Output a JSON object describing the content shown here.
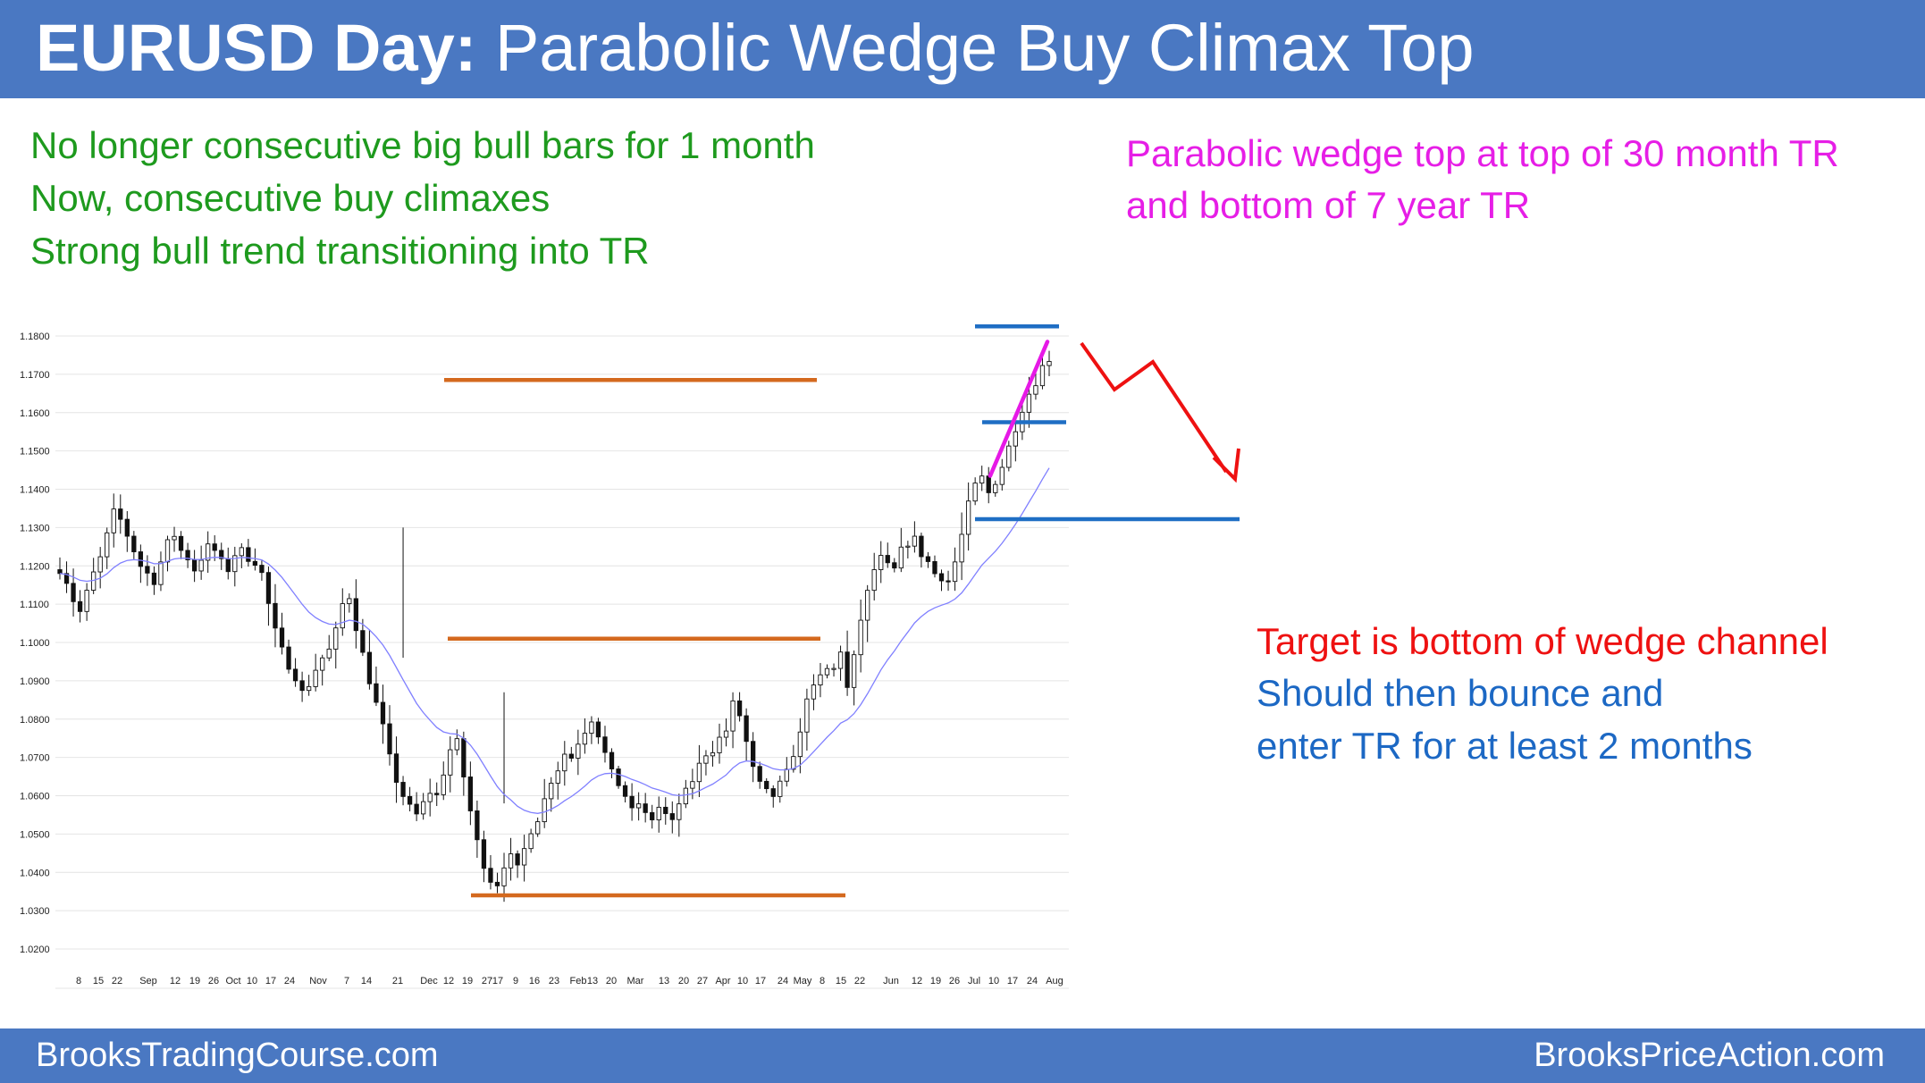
{
  "title": {
    "bold": "EURUSD Day:",
    "rest": " Parabolic Wedge Buy Climax Top"
  },
  "notes": {
    "green": [
      "No longer consecutive big bull bars for 1 month",
      "Now, consecutive buy climaxes",
      "Strong bull trend transitioning into TR"
    ],
    "magenta": [
      "Parabolic wedge top at top of 30 month TR",
      "and bottom of 7 year TR"
    ],
    "red": "Target is bottom of wedge channel",
    "blue": [
      "Should then bounce and",
      "enter TR for at least 2 months"
    ]
  },
  "footer": {
    "left": "BrooksTradingCourse.com",
    "right": "BrooksPriceAction.com"
  },
  "colors": {
    "header": "#4a78c2",
    "orange_line": "#d4691e",
    "blue_line": "#1f6ec4",
    "wedge": "#e619e6",
    "arrow": "#ee1111",
    "ema": "#8080ff",
    "candle": "#111111"
  },
  "chart_data": {
    "type": "candlestick",
    "ylim": [
      1.02,
      1.18
    ],
    "yticks": [
      "1.1800",
      "1.1700",
      "1.1600",
      "1.1500",
      "1.1400",
      "1.1300",
      "1.1200",
      "1.1100",
      "1.1000",
      "1.0900",
      "1.0800",
      "1.0700",
      "1.0600",
      "1.0500",
      "1.0400",
      "1.0300",
      "1.0200"
    ],
    "xticks": [
      "8",
      "15",
      "22",
      "Sep",
      "12",
      "19",
      "26",
      "Oct",
      "10",
      "17",
      "24",
      "Nov",
      "7",
      "14",
      "21",
      "Dec",
      "12",
      "19",
      "27",
      "'17",
      "9",
      "16",
      "23",
      "Feb",
      "13",
      "20",
      "Mar",
      "13",
      "20",
      "27",
      "Apr",
      "10",
      "17",
      "24",
      "May",
      "8",
      "15",
      "22",
      "Jun",
      "12",
      "19",
      "26",
      "Jul",
      "10",
      "17",
      "24",
      "Aug"
    ],
    "close_path": [
      1.119,
      1.116,
      1.111,
      1.108,
      1.113,
      1.118,
      1.122,
      1.128,
      1.134,
      1.132,
      1.128,
      1.124,
      1.12,
      1.118,
      1.116,
      1.121,
      1.126,
      1.128,
      1.124,
      1.122,
      1.119,
      1.122,
      1.125,
      1.124,
      1.121,
      1.119,
      1.123,
      1.124,
      1.122,
      1.121,
      1.118,
      1.11,
      1.103,
      1.098,
      1.094,
      1.091,
      1.087,
      1.089,
      1.093,
      1.096,
      1.098,
      1.103,
      1.11,
      1.112,
      1.104,
      1.097,
      1.09,
      1.084,
      1.078,
      1.07,
      1.064,
      1.06,
      1.057,
      1.055,
      1.058,
      1.061,
      1.06,
      1.066,
      1.072,
      1.074,
      1.065,
      1.056,
      1.048,
      1.042,
      1.038,
      1.037,
      1.042,
      1.044,
      1.041,
      1.046,
      1.051,
      1.054,
      1.059,
      1.064,
      1.067,
      1.071,
      1.07,
      1.074,
      1.077,
      1.08,
      1.076,
      1.071,
      1.066,
      1.063,
      1.06,
      1.056,
      1.058,
      1.055,
      1.054,
      1.057,
      1.055,
      1.053,
      1.058,
      1.061,
      1.064,
      1.068,
      1.071,
      1.072,
      1.075,
      1.077,
      1.084,
      1.081,
      1.074,
      1.067,
      1.063,
      1.061,
      1.06,
      1.063,
      1.066,
      1.071,
      1.076,
      1.086,
      1.088,
      1.091,
      1.093,
      1.093,
      1.098,
      1.088,
      1.096,
      1.106,
      1.113,
      1.119,
      1.122,
      1.12,
      1.119,
      1.124,
      1.126,
      1.127,
      1.123,
      1.121,
      1.118,
      1.117,
      1.116,
      1.121,
      1.128,
      1.136,
      1.141,
      1.143,
      1.139,
      1.142,
      1.146,
      1.151,
      1.156,
      1.161,
      1.165,
      1.168,
      1.172,
      1.174
    ],
    "reference_lines": [
      {
        "name": "30 month TR top",
        "price": 1.1685
      },
      {
        "name": "30 month TR middle",
        "price": 1.101
      },
      {
        "name": "30 month TR bottom",
        "price": 1.034
      },
      {
        "name": "wedge top",
        "price": 1.1825
      },
      {
        "name": "wedge middle",
        "price": 1.1575
      },
      {
        "name": "wedge bottom",
        "price": 1.1322
      }
    ]
  }
}
